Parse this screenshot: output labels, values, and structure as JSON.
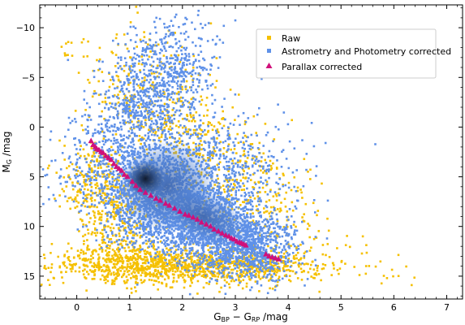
{
  "chart_data": {
    "type": "scatter",
    "xlabel": {
      "main": "G",
      "sub1": "BP",
      "mid": " − G",
      "sub2": "RP",
      "unit": " /mag"
    },
    "ylabel": {
      "main": "M",
      "sub": "G",
      "unit": " /mag"
    },
    "xlim": [
      -0.7,
      7.3
    ],
    "ylim": [
      17.3,
      -12.3
    ],
    "y_inverted": true,
    "xticks": [
      0,
      1,
      2,
      3,
      4,
      5,
      6,
      7
    ],
    "yticks": [
      -10,
      -5,
      0,
      5,
      10,
      15
    ],
    "x_minor_step": 0.2,
    "y_minor_step": 1,
    "grid": false,
    "legend_position": "top-right",
    "series": [
      {
        "name": "Raw",
        "color": "#f5c000",
        "marker": "square",
        "distribution": [
          {
            "x_from": 0.3,
            "x_to": 3.8,
            "y_at_start": 13.9,
            "y_at_end": 13.9,
            "x_spread": 0.85,
            "y_spread": 0.9,
            "weight": 9
          },
          {
            "x_from": 0.2,
            "x_to": 1.0,
            "y_at_start": 3,
            "y_at_end": 13,
            "x_spread": 0.35,
            "y_spread": 1.8,
            "weight": 4
          },
          {
            "x_from": 0.8,
            "x_to": 3.8,
            "y_at_start": -6,
            "y_at_end": 10,
            "x_spread": 0.5,
            "y_spread": 3,
            "weight": 5
          },
          {
            "x_from": -0.5,
            "x_to": 6.2,
            "y_at_start": -9,
            "y_at_end": 16,
            "x_spread": 0.3,
            "y_spread": 0.3,
            "weight": 0.6
          }
        ]
      },
      {
        "name": "Astrometry and Photometry corrected",
        "color": "#5f91e8",
        "marker": "square",
        "distribution": [
          {
            "x_from": 0.9,
            "x_to": 3.7,
            "y_at_start": 5,
            "y_at_end": 12.5,
            "x_spread": 0.35,
            "y_spread": 1.7,
            "weight": 10
          },
          {
            "x_from": 0.8,
            "x_to": 2.1,
            "y_at_start": 0,
            "y_at_end": -8,
            "x_spread": 0.42,
            "y_spread": 2.3,
            "weight": 4
          },
          {
            "x_from": 0.4,
            "x_to": 3.4,
            "y_at_start": 4,
            "y_at_end": 4,
            "x_spread": 0.6,
            "y_spread": 2.5,
            "weight": 5
          },
          {
            "x_from": 1.0,
            "x_to": 3.5,
            "y_at_start": 9,
            "y_at_end": 13.5,
            "x_spread": 0.45,
            "y_spread": 1.4,
            "weight": 4
          }
        ]
      },
      {
        "name": "Parallax corrected",
        "color": "#d0107a",
        "marker": "triangle",
        "points": [
          [
            0.27,
            1.4
          ],
          [
            0.31,
            1.8
          ],
          [
            0.35,
            2.0
          ],
          [
            0.38,
            2.2
          ],
          [
            0.42,
            2.3
          ],
          [
            0.46,
            2.5
          ],
          [
            0.5,
            2.6
          ],
          [
            0.55,
            2.9
          ],
          [
            0.6,
            3.1
          ],
          [
            0.65,
            3.3
          ],
          [
            0.7,
            3.7
          ],
          [
            0.75,
            4.0
          ],
          [
            0.8,
            4.2
          ],
          [
            0.85,
            4.4
          ],
          [
            0.9,
            4.8
          ],
          [
            0.96,
            5.0
          ],
          [
            1.05,
            5.5
          ],
          [
            1.12,
            5.9
          ],
          [
            1.2,
            6.3
          ],
          [
            1.3,
            6.6
          ],
          [
            1.4,
            6.9
          ],
          [
            1.5,
            7.2
          ],
          [
            1.58,
            7.4
          ],
          [
            1.68,
            7.7
          ],
          [
            1.75,
            7.9
          ],
          [
            1.85,
            8.2
          ],
          [
            1.95,
            8.5
          ],
          [
            2.05,
            8.8
          ],
          [
            2.12,
            8.9
          ],
          [
            2.2,
            9.1
          ],
          [
            2.28,
            9.3
          ],
          [
            2.36,
            9.6
          ],
          [
            2.45,
            9.8
          ],
          [
            2.53,
            10.0
          ],
          [
            2.6,
            10.3
          ],
          [
            2.68,
            10.5
          ],
          [
            2.75,
            10.7
          ],
          [
            2.82,
            10.9
          ],
          [
            2.88,
            11.0
          ],
          [
            2.93,
            11.2
          ],
          [
            2.98,
            11.3
          ],
          [
            3.03,
            11.5
          ],
          [
            3.08,
            11.6
          ],
          [
            3.12,
            11.7
          ],
          [
            3.16,
            11.8
          ],
          [
            3.2,
            11.9
          ],
          [
            3.58,
            12.8
          ],
          [
            3.64,
            13.0
          ],
          [
            3.7,
            13.1
          ],
          [
            3.76,
            13.2
          ],
          [
            3.82,
            13.3
          ]
        ]
      }
    ]
  }
}
